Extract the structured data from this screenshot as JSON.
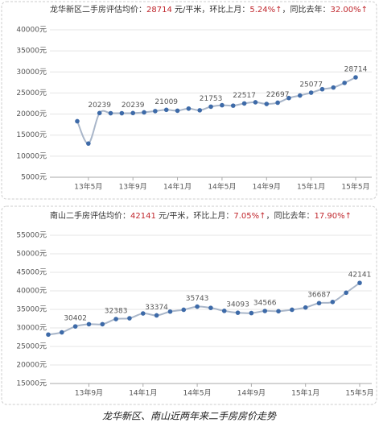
{
  "chart_data": [
    {
      "type": "line",
      "title": "龙华新区二手房评估均价：",
      "price": "28714",
      "unit": " 元/平米，环比上月：",
      "mom": "5.24%↑",
      "yoy_label": "，同比去年：",
      "yoy": "32.00%↑",
      "categories": [
        null,
        "13年5月",
        null,
        null,
        null,
        "13年9月",
        null,
        null,
        null,
        "14年1月",
        null,
        null,
        null,
        "14年5月",
        null,
        null,
        null,
        "14年9月",
        null,
        null,
        null,
        "15年1月",
        null,
        null,
        null,
        "15年5月"
      ],
      "values": [
        18300,
        13000,
        20239,
        20200,
        20200,
        20239,
        20400,
        20700,
        21009,
        20800,
        21300,
        20900,
        21753,
        22100,
        22000,
        22517,
        22800,
        22400,
        22697,
        23800,
        24400,
        25077,
        25900,
        26300,
        27400,
        28714
      ],
      "value_labels": [
        null,
        null,
        "20239",
        null,
        null,
        "20239",
        null,
        null,
        "21009",
        null,
        null,
        null,
        "21753",
        null,
        null,
        "22517",
        null,
        null,
        "22697",
        null,
        null,
        "25077",
        null,
        null,
        null,
        "28714"
      ],
      "color": "#3d6aa8",
      "line_color": "#a9b6c9",
      "ylim": [
        5000,
        40000
      ],
      "yticks": [
        {
          "value": 5000,
          "label": "5000元"
        },
        {
          "value": 10000,
          "label": "10000元"
        },
        {
          "value": 15000,
          "label": "15000元"
        },
        {
          "value": 20000,
          "label": "20000元"
        },
        {
          "value": 25000,
          "label": "25000元"
        },
        {
          "value": 30000,
          "label": "30000元"
        },
        {
          "value": 35000,
          "label": "35000元"
        },
        {
          "value": 40000,
          "label": "40000元"
        }
      ],
      "grid": true
    },
    {
      "type": "line",
      "title": "南山二手房评估均价：",
      "price": "42141",
      "unit": " 元/平米，环比上月：",
      "mom": "7.05%↑",
      "yoy_label": "，同比去年：",
      "yoy": "17.90%↑",
      "categories": [
        null,
        null,
        null,
        "13年9月",
        null,
        null,
        null,
        "14年1月",
        null,
        null,
        null,
        "14年5月",
        null,
        null,
        null,
        "14年9月",
        null,
        null,
        null,
        "15年1月",
        null,
        null,
        null,
        "15年5月"
      ],
      "values": [
        28200,
        28800,
        30402,
        31000,
        31000,
        32383,
        32600,
        33900,
        33374,
        34400,
        34900,
        35743,
        35400,
        34600,
        34093,
        34000,
        34566,
        34500,
        34900,
        35500,
        36687,
        37000,
        39500,
        42141
      ],
      "value_labels": [
        null,
        null,
        "30402",
        null,
        null,
        "32383",
        null,
        null,
        "33374",
        null,
        null,
        "35743",
        null,
        null,
        "34093",
        null,
        "34566",
        null,
        null,
        null,
        "36687",
        null,
        null,
        "42141"
      ],
      "color": "#3d6aa8",
      "line_color": "#a9b6c9",
      "ylim": [
        15000,
        55000
      ],
      "yticks": [
        {
          "value": 15000,
          "label": "15000元"
        },
        {
          "value": 20000,
          "label": "20000元"
        },
        {
          "value": 25000,
          "label": "25000元"
        },
        {
          "value": 30000,
          "label": "30000元"
        },
        {
          "value": 35000,
          "label": "35000元"
        },
        {
          "value": 40000,
          "label": "40000元"
        },
        {
          "value": 45000,
          "label": "45000元"
        },
        {
          "value": 50000,
          "label": "50000元"
        },
        {
          "value": 55000,
          "label": "55000元"
        }
      ],
      "grid": true
    }
  ],
  "caption": "龙华新区、南山近两年来二手房房价走势"
}
